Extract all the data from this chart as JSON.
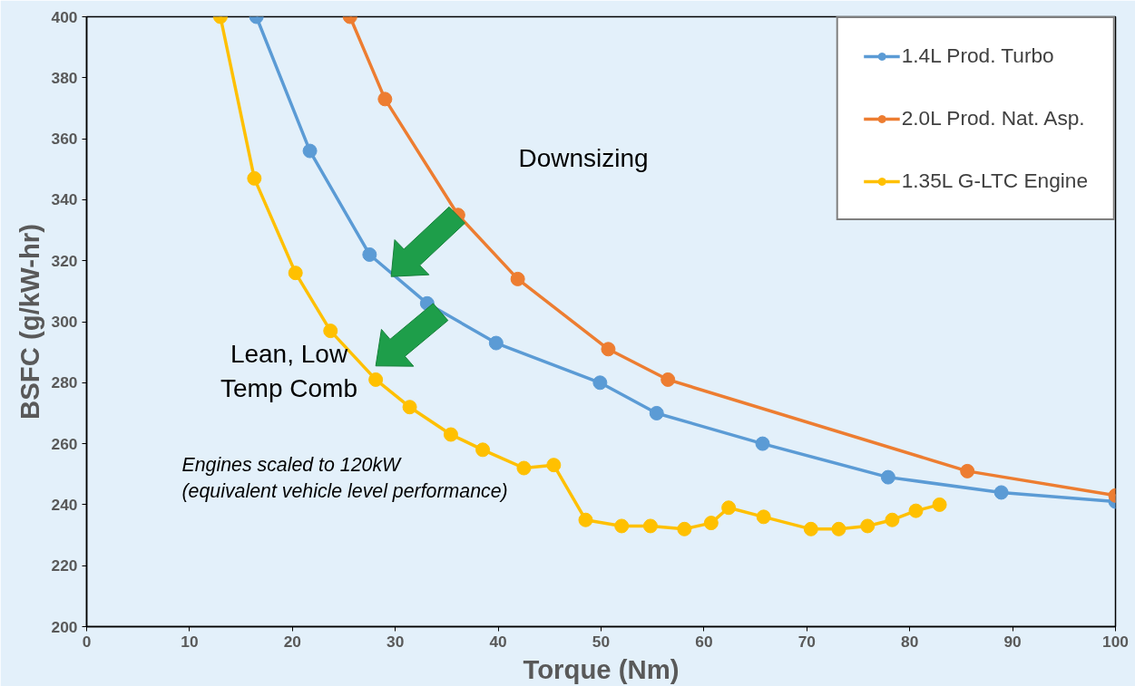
{
  "chart_data": {
    "type": "line",
    "xlabel": "Torque (Nm)",
    "ylabel": "BSFC (g/kW-hr)",
    "xlim": [
      0,
      100
    ],
    "ylim": [
      200,
      400
    ],
    "xticks": [
      0,
      10,
      20,
      30,
      40,
      50,
      60,
      70,
      80,
      90,
      100
    ],
    "yticks": [
      200,
      220,
      240,
      260,
      280,
      300,
      320,
      340,
      360,
      380,
      400
    ],
    "grid": false,
    "legend": "top right",
    "marker": "circle",
    "line_style": "solid",
    "series": [
      {
        "name": "1.4L Prod. Turbo",
        "color": "#5b9bd5",
        "x": [
          16.5,
          21.7,
          27.5,
          33.1,
          39.8,
          49.9,
          55.4,
          65.7,
          77.9,
          88.9,
          100
        ],
        "values": [
          400,
          356,
          322,
          306,
          293,
          280,
          270,
          260,
          249,
          244,
          241
        ]
      },
      {
        "name": "2.0L Prod. Nat. Asp.",
        "color": "#ed7d31",
        "x": [
          25.6,
          29.0,
          36.1,
          41.9,
          50.7,
          56.5,
          85.6,
          100
        ],
        "values": [
          400,
          373,
          335,
          314,
          291,
          281,
          251,
          243
        ]
      },
      {
        "name": "1.35L G-LTC Engine",
        "color": "#ffc000",
        "x": [
          13.0,
          16.3,
          20.3,
          23.7,
          28.1,
          31.4,
          35.4,
          38.5,
          42.5,
          45.4,
          48.5,
          52.0,
          54.8,
          58.1,
          60.7,
          62.4,
          65.8,
          70.4,
          73.1,
          75.9,
          78.3,
          80.6,
          82.9
        ],
        "values": [
          400,
          347,
          316,
          297,
          281,
          272,
          263,
          258,
          252,
          253,
          235,
          233,
          233,
          232,
          234,
          239,
          236,
          232,
          232,
          233,
          235,
          238,
          240
        ]
      }
    ],
    "annotations": [
      "Downsizing",
      "Lean, Low\nTemp Comb",
      "Engines scaled to 120kW\n(equivalent vehicle level performance)"
    ]
  }
}
